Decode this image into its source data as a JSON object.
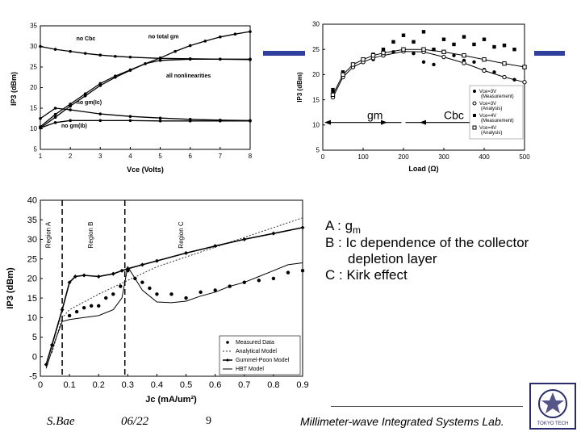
{
  "slide": {
    "annotations": {
      "a_prefix": "A : g",
      "a_sub": "m",
      "b_line1": "B : Ic dependence of the collector",
      "b_line2": "depletion layer",
      "c_line": "C : Kirk effect"
    },
    "footer": {
      "author": "S.Bae",
      "date": "06/22",
      "page": "9",
      "lab": "Millimeter-wave Integrated Systems Lab."
    },
    "logo_text": "TOKYO TECH"
  },
  "colors": {
    "accent_bar": "#2f3f9e",
    "arrow_black": "#000000"
  },
  "chart_data": [
    {
      "type": "line",
      "name": "ip3-vs-vce",
      "title": "",
      "xlabel": "Vce (Volts)",
      "ylabel": "IP3 (dBm)",
      "xlim": [
        1,
        8
      ],
      "ylim": [
        5,
        35
      ],
      "xticks": [
        1,
        2,
        3,
        4,
        5,
        6,
        7,
        8
      ],
      "yticks": [
        5,
        10,
        15,
        20,
        25,
        30,
        35
      ],
      "series": [
        {
          "name": "no Cbc",
          "x": [
            1,
            1.5,
            2,
            2.5,
            3,
            3.5,
            4,
            5,
            6,
            7,
            8
          ],
          "y": [
            30,
            29.3,
            28.8,
            28.3,
            27.9,
            27.6,
            27.4,
            27.1,
            27,
            26.9,
            26.9
          ]
        },
        {
          "name": "no total gm",
          "x": [
            1,
            1.5,
            2,
            2.5,
            3,
            3.5,
            4,
            4.5,
            5,
            5.5,
            6,
            6.5,
            7,
            7.5,
            8
          ],
          "y": [
            10.5,
            13.5,
            16,
            18.5,
            21,
            22.8,
            24.3,
            25.8,
            27.2,
            28.8,
            30.2,
            31.3,
            32.3,
            33,
            33.6
          ]
        },
        {
          "name": "all nonlinearities",
          "x": [
            1,
            1.5,
            2,
            2.5,
            3,
            3.5,
            4,
            4.5,
            5,
            6,
            7,
            8
          ],
          "y": [
            10.2,
            12.8,
            15.5,
            18,
            20.5,
            22.5,
            24.2,
            25.8,
            26.6,
            26.9,
            26.9,
            26.8
          ]
        },
        {
          "name": "no gm(Ic)",
          "x": [
            1,
            1.5,
            2,
            3,
            4,
            5,
            6,
            7,
            8
          ],
          "y": [
            12.5,
            15,
            14.6,
            13.6,
            13,
            12.6,
            12.3,
            12.1,
            12
          ]
        },
        {
          "name": "no gm(Ib)",
          "x": [
            1,
            1.5,
            2,
            3,
            4,
            5,
            6,
            7,
            8
          ],
          "y": [
            10.2,
            11.5,
            12,
            12,
            12,
            11.9,
            11.9,
            11.9,
            11.9
          ]
        }
      ],
      "annotations": [
        "no Cbc",
        "no total gm",
        "all nonlinearities",
        "no gm(Ic)",
        "no gm(Ib)"
      ]
    },
    {
      "type": "scatter",
      "name": "ip3-vs-load",
      "title": "",
      "xlabel": "Load (Ω)",
      "ylabel": "IP3 (dBm)",
      "xlim": [
        0,
        500
      ],
      "ylim": [
        5,
        30
      ],
      "xticks": [
        0,
        100,
        200,
        300,
        400,
        500
      ],
      "yticks": [
        5,
        10,
        15,
        20,
        25,
        30
      ],
      "series": [
        {
          "name": "Vce=3V (Measurement)",
          "x": [
            25,
            50,
            75,
            100,
            125,
            150,
            175,
            200,
            225,
            250,
            275,
            300,
            325,
            350,
            375,
            400,
            425,
            450,
            475
          ],
          "y": [
            16.5,
            20,
            21.5,
            22.5,
            23,
            24,
            24.5,
            24.8,
            24.2,
            22.5,
            22,
            23.5,
            23.8,
            22.8,
            22.5,
            21,
            20.5,
            19.5,
            19
          ]
        },
        {
          "name": "Vce=3V (Analysis)",
          "x": [
            25,
            50,
            75,
            100,
            125,
            150,
            200,
            250,
            300,
            350,
            400,
            450,
            500
          ],
          "y": [
            15.5,
            19.5,
            21.5,
            22.5,
            23.3,
            23.8,
            24.6,
            24.5,
            23.5,
            22.3,
            20.8,
            19.5,
            18.5
          ]
        },
        {
          "name": "Vce=4V (Measurement)",
          "x": [
            25,
            50,
            75,
            100,
            125,
            150,
            175,
            200,
            225,
            250,
            275,
            300,
            325,
            350,
            375,
            400,
            425,
            450,
            475
          ],
          "y": [
            17,
            20.5,
            22,
            23,
            24,
            25,
            26.5,
            27.8,
            26.5,
            28.5,
            25,
            27,
            26,
            27.5,
            26,
            27,
            25.5,
            25.8,
            25
          ]
        },
        {
          "name": "Vce=4V (Analysis)",
          "x": [
            25,
            50,
            75,
            100,
            125,
            150,
            200,
            250,
            300,
            350,
            400,
            450,
            500
          ],
          "y": [
            16,
            20,
            22,
            23,
            23.8,
            24.3,
            25,
            25,
            24.5,
            23.8,
            23,
            22.2,
            21.5
          ]
        }
      ],
      "legend": [
        "Vce=3V (Measurement)",
        "Vce=3V (Analysis)",
        "Vce=4V (Measurement)",
        "Vce=4V (Analysis)"
      ],
      "arrow_labels": {
        "left": "gm",
        "right": "Cbc"
      },
      "legend_position": "right"
    },
    {
      "type": "line",
      "name": "ip3-vs-jc",
      "title": "",
      "xlabel": "Jc (mA/um²)",
      "ylabel": "IP3 (dBm)",
      "xlim": [
        0,
        0.9
      ],
      "ylim": [
        -5,
        40
      ],
      "xticks": [
        0,
        0.1,
        0.2,
        0.3,
        0.4,
        0.5,
        0.6,
        0.7,
        0.8,
        0.9
      ],
      "yticks": [
        -5,
        0,
        5,
        10,
        15,
        20,
        25,
        30,
        35,
        40
      ],
      "region_lines": [
        0.075,
        0.29
      ],
      "region_labels": [
        "Region A",
        "Region B",
        "Region C"
      ],
      "series": [
        {
          "name": "Measured Data",
          "x": [
            0.1,
            0.125,
            0.15,
            0.175,
            0.2,
            0.225,
            0.25,
            0.275,
            0.3,
            0.325,
            0.35,
            0.375,
            0.4,
            0.45,
            0.5,
            0.55,
            0.6,
            0.65,
            0.7,
            0.75,
            0.8,
            0.85,
            0.9
          ],
          "y": [
            10.5,
            11.5,
            12.5,
            13,
            13,
            15,
            16,
            18,
            22,
            20,
            19,
            17.5,
            16,
            16,
            15,
            16.5,
            17,
            18,
            19,
            19.5,
            20,
            21.5,
            22
          ]
        },
        {
          "name": "Analytical Model",
          "x": [
            0.04,
            0.075,
            0.1,
            0.2,
            0.3,
            0.4,
            0.5,
            0.6,
            0.7,
            0.8,
            0.9
          ],
          "y": [
            1,
            10,
            12,
            16,
            19.5,
            23,
            25.5,
            28,
            30.5,
            33,
            35.5
          ]
        },
        {
          "name": "Gummel-Poon Model",
          "x": [
            0.02,
            0.04,
            0.075,
            0.1,
            0.12,
            0.15,
            0.2,
            0.25,
            0.28,
            0.3,
            0.35,
            0.4,
            0.5,
            0.6,
            0.7,
            0.8,
            0.9
          ],
          "y": [
            -2,
            3,
            12,
            19,
            20.5,
            20.8,
            20.5,
            21.2,
            22,
            22.5,
            23.5,
            24.5,
            26.5,
            28.3,
            30,
            31.5,
            33
          ]
        },
        {
          "name": "HBT Model",
          "x": [
            0.02,
            0.05,
            0.075,
            0.1,
            0.15,
            0.2,
            0.25,
            0.28,
            0.3,
            0.35,
            0.4,
            0.45,
            0.5,
            0.55,
            0.6,
            0.65,
            0.7,
            0.75,
            0.8,
            0.85,
            0.9
          ],
          "y": [
            -3,
            4,
            9,
            9.5,
            10,
            10.5,
            12,
            15,
            23,
            17,
            14,
            13.8,
            14.2,
            15.5,
            16.5,
            18,
            19,
            20.5,
            22,
            23.5,
            24
          ]
        }
      ],
      "legend": [
        "Measured Data",
        "Analytical Model",
        "Gummel-Poon Model",
        "HBT Model"
      ],
      "legend_position": "bottom-right"
    }
  ]
}
